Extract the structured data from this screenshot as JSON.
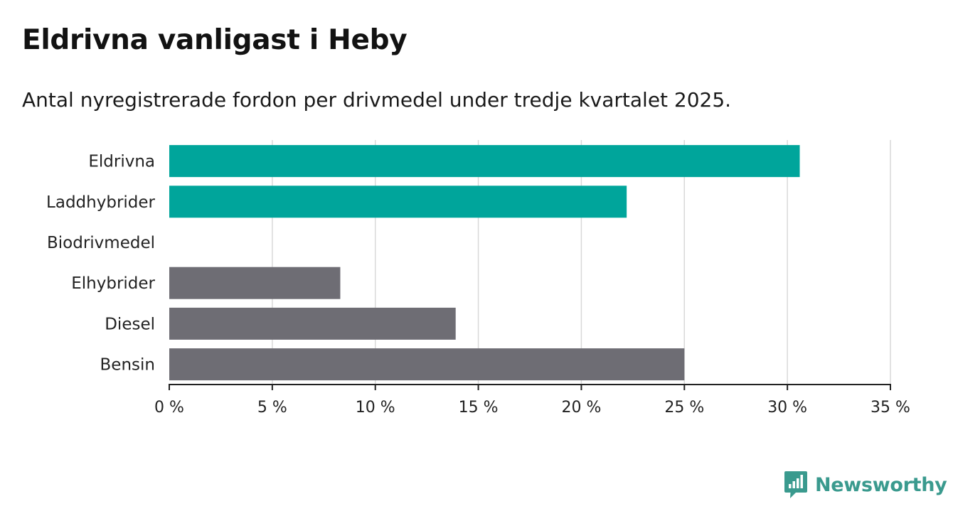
{
  "title": "Eldrivna vanligast i Heby",
  "subtitle": "Antal nyregistrerade fordon per drivmedel under tredje kvartalet 2025.",
  "brand": {
    "name": "Newsworthy",
    "color": "#3a9a8e",
    "icon": "bar-chart-speech-bubble-icon"
  },
  "colors": {
    "highlight": "#00a59b",
    "default": "#6e6d74",
    "grid": "#d9d9d9",
    "axis": "#222222"
  },
  "chart_data": {
    "type": "bar",
    "orientation": "horizontal",
    "title": "Eldrivna vanligast i Heby",
    "subtitle": "Antal nyregistrerade fordon per drivmedel under tredje kvartalet 2025.",
    "xlabel": "",
    "ylabel": "",
    "xlim": [
      0,
      35
    ],
    "tick_step": 5,
    "tick_labels": [
      "0 %",
      "5 %",
      "10 %",
      "15 %",
      "20 %",
      "25 %",
      "30 %",
      "35 %"
    ],
    "grid": true,
    "legend": "none",
    "categories": [
      "Eldrivna",
      "Laddhybrider",
      "Biodrivmedel",
      "Elhybrider",
      "Diesel",
      "Bensin"
    ],
    "values": [
      30.6,
      22.2,
      0,
      8.3,
      13.9,
      25.0
    ],
    "highlight": [
      true,
      true,
      false,
      false,
      false,
      false
    ]
  }
}
